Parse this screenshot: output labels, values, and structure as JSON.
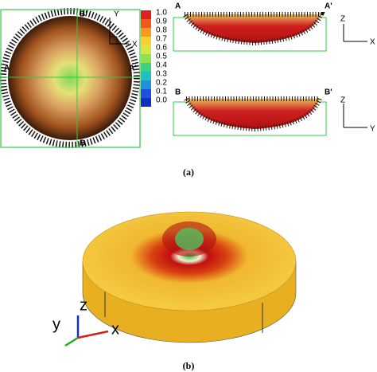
{
  "panel_a": {
    "top_view": {
      "labels": {
        "b_prime": "B'",
        "y": "Y",
        "x": "X",
        "a": "A",
        "a_prime": "A'",
        "b": "B"
      },
      "colorbar_ticks": [
        "1.0",
        "0.9",
        "0.8",
        "0.7",
        "0.6",
        "0.5",
        "0.4",
        "0.3",
        "0.2",
        "0.1",
        "0.0"
      ]
    },
    "section_aa": {
      "left": "A",
      "right": "A'",
      "z": "Z",
      "x": "X"
    },
    "section_bb": {
      "left": "B",
      "right": "B'",
      "z": "Z",
      "y": "Y"
    },
    "caption": "(a)"
  },
  "panel_b": {
    "axes": {
      "z": "z",
      "y": "y",
      "x": "x"
    },
    "caption": "(b)"
  }
}
